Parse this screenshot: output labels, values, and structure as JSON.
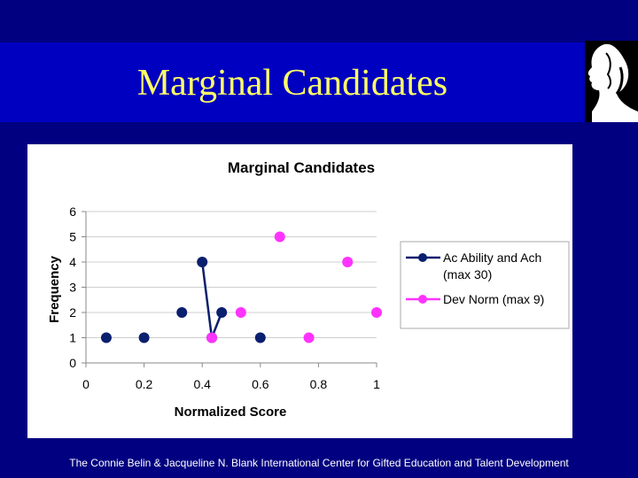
{
  "slide": {
    "title": "Marginal Candidates",
    "footer": "The Connie Belin & Jacqueline N. Blank International Center for Gifted Education and Talent Development"
  },
  "logo": {
    "icon": "face-profile-icon"
  },
  "colors": {
    "background": "#000080",
    "title_band": "#0000c0",
    "title_text": "#ffff66",
    "series_1": "#0a1f6e",
    "series_2": "#ff33ff"
  },
  "chart_data": {
    "type": "scatter",
    "title": "Marginal Candidates",
    "xlabel": "Normalized Score",
    "ylabel": "Frequency",
    "xlim": [
      0,
      1
    ],
    "ylim": [
      0,
      6
    ],
    "xticks": [
      "0",
      "0.2",
      "0.4",
      "0.6",
      "0.8",
      "1"
    ],
    "yticks": [
      "0",
      "1",
      "2",
      "3",
      "4",
      "5",
      "6"
    ],
    "grid": "horizontal",
    "legend": "right",
    "series": [
      {
        "name_lines": [
          "Ac Ability and Ach",
          "(max 30)"
        ],
        "color": "#0a1f6e",
        "points": [
          [
            0.07,
            1
          ],
          [
            0.2,
            1
          ],
          [
            0.33,
            2
          ],
          [
            0.4,
            4
          ],
          [
            0.433,
            1
          ],
          [
            0.467,
            2
          ],
          [
            0.6,
            1
          ]
        ],
        "connected_segment": [
          3,
          4,
          5
        ]
      },
      {
        "name_lines": [
          "Dev Norm (max 9)"
        ],
        "color": "#ff33ff",
        "points": [
          [
            0.433,
            1
          ],
          [
            0.533,
            2
          ],
          [
            0.667,
            5
          ],
          [
            0.767,
            1
          ],
          [
            0.9,
            4
          ],
          [
            1.0,
            2
          ]
        ]
      }
    ]
  }
}
